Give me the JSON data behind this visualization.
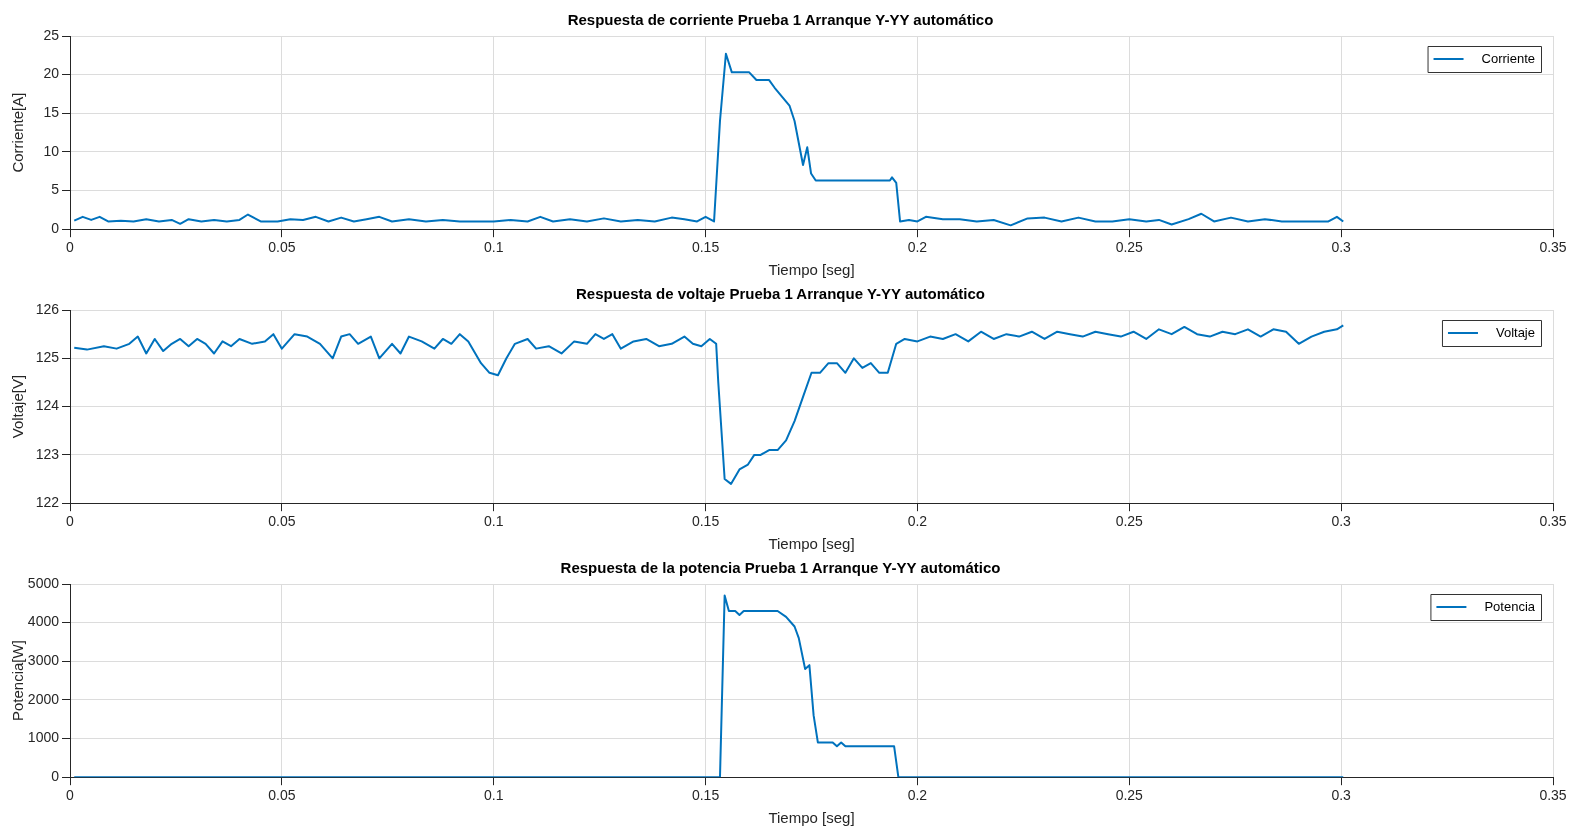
{
  "chart_data": [
    {
      "type": "line",
      "title": "Respuesta de corriente Prueba 1 Arranque Y-YY automático",
      "xlabel": "Tiempo [seg]",
      "ylabel": "Corriente[A]",
      "xlim": [
        0,
        0.35
      ],
      "xticks": [
        0,
        0.05,
        0.1,
        0.15,
        0.2,
        0.25,
        0.3,
        0.35
      ],
      "ylim": [
        0,
        25
      ],
      "yticks": [
        0,
        5,
        10,
        15,
        20,
        25
      ],
      "grid": true,
      "legend": "top right",
      "line_style": "solid",
      "marker": "none",
      "series": [
        {
          "name": "Corriente",
          "color": "#0072bd",
          "x": [
            0.001,
            0.003,
            0.005,
            0.007,
            0.009,
            0.012,
            0.015,
            0.018,
            0.021,
            0.024,
            0.026,
            0.028,
            0.031,
            0.034,
            0.037,
            0.04,
            0.042,
            0.045,
            0.049,
            0.052,
            0.055,
            0.058,
            0.061,
            0.064,
            0.067,
            0.07,
            0.073,
            0.076,
            0.08,
            0.084,
            0.088,
            0.092,
            0.096,
            0.1,
            0.104,
            0.108,
            0.111,
            0.114,
            0.118,
            0.122,
            0.126,
            0.13,
            0.134,
            0.138,
            0.142,
            0.145,
            0.148,
            0.15,
            0.152,
            0.1534,
            0.1548,
            0.1562,
            0.1603,
            0.162,
            0.165,
            0.1663,
            0.1698,
            0.171,
            0.173,
            0.174,
            0.1749,
            0.176,
            0.1935,
            0.194,
            0.195,
            0.1959,
            0.198,
            0.2,
            0.202,
            0.206,
            0.21,
            0.214,
            0.218,
            0.222,
            0.226,
            0.23,
            0.234,
            0.238,
            0.242,
            0.246,
            0.25,
            0.254,
            0.257,
            0.26,
            0.264,
            0.267,
            0.27,
            0.274,
            0.278,
            0.282,
            0.286,
            0.29,
            0.294,
            0.297,
            0.299,
            0.3005
          ],
          "values": [
            1.1,
            1.6,
            1.2,
            1.6,
            1.0,
            1.1,
            1.0,
            1.3,
            1.0,
            1.2,
            0.7,
            1.3,
            1.0,
            1.2,
            1.0,
            1.2,
            1.9,
            1.0,
            1.0,
            1.3,
            1.2,
            1.6,
            1.0,
            1.5,
            1.0,
            1.3,
            1.6,
            1.0,
            1.3,
            1.0,
            1.2,
            1.0,
            1.0,
            1.0,
            1.2,
            1.0,
            1.6,
            1.0,
            1.3,
            1.0,
            1.4,
            1.0,
            1.2,
            1.0,
            1.5,
            1.3,
            1.0,
            1.6,
            1.0,
            14.0,
            22.7,
            20.3,
            20.3,
            19.3,
            19.3,
            18.3,
            16.0,
            14.0,
            8.3,
            10.6,
            7.2,
            6.3,
            6.3,
            6.7,
            6.0,
            1.0,
            1.2,
            1.0,
            1.6,
            1.3,
            1.3,
            1.0,
            1.2,
            0.5,
            1.4,
            1.5,
            1.0,
            1.5,
            1.0,
            1.0,
            1.3,
            1.0,
            1.2,
            0.6,
            1.3,
            2.0,
            1.0,
            1.5,
            1.0,
            1.3,
            1.0,
            1.0,
            1.0,
            1.0,
            1.6,
            1.0
          ]
        }
      ]
    },
    {
      "type": "line",
      "title": "Respuesta de voltaje Prueba 1 Arranque Y-YY automático",
      "xlabel": "Tiempo [seg]",
      "ylabel": "Voltaje[V]",
      "xlim": [
        0,
        0.35
      ],
      "xticks": [
        0,
        0.05,
        0.1,
        0.15,
        0.2,
        0.25,
        0.3,
        0.35
      ],
      "ylim": [
        122,
        126
      ],
      "yticks": [
        122,
        123,
        124,
        125,
        126
      ],
      "grid": true,
      "legend": "top right",
      "line_style": "solid",
      "marker": "none",
      "series": [
        {
          "name": "Voltaje",
          "color": "#0072bd",
          "x": [
            0.001,
            0.004,
            0.008,
            0.011,
            0.014,
            0.016,
            0.018,
            0.02,
            0.022,
            0.024,
            0.026,
            0.028,
            0.03,
            0.032,
            0.034,
            0.036,
            0.038,
            0.04,
            0.043,
            0.046,
            0.048,
            0.05,
            0.053,
            0.056,
            0.059,
            0.062,
            0.064,
            0.066,
            0.068,
            0.071,
            0.073,
            0.076,
            0.078,
            0.08,
            0.083,
            0.086,
            0.088,
            0.09,
            0.092,
            0.094,
            0.097,
            0.099,
            0.101,
            0.103,
            0.105,
            0.108,
            0.11,
            0.113,
            0.116,
            0.119,
            0.122,
            0.124,
            0.126,
            0.128,
            0.13,
            0.133,
            0.136,
            0.139,
            0.142,
            0.145,
            0.147,
            0.149,
            0.151,
            0.1525,
            0.153,
            0.1545,
            0.156,
            0.158,
            0.16,
            0.1615,
            0.163,
            0.165,
            0.167,
            0.169,
            0.171,
            0.173,
            0.175,
            0.177,
            0.179,
            0.181,
            0.183,
            0.185,
            0.187,
            0.189,
            0.191,
            0.193,
            0.195,
            0.197,
            0.2,
            0.203,
            0.206,
            0.209,
            0.212,
            0.215,
            0.218,
            0.221,
            0.224,
            0.227,
            0.23,
            0.233,
            0.236,
            0.239,
            0.242,
            0.245,
            0.248,
            0.251,
            0.254,
            0.257,
            0.26,
            0.263,
            0.266,
            0.269,
            0.272,
            0.275,
            0.278,
            0.281,
            0.284,
            0.287,
            0.29,
            0.293,
            0.296,
            0.299,
            0.3005
          ],
          "values": [
            125.22,
            125.18,
            125.25,
            125.2,
            125.3,
            125.45,
            125.1,
            125.4,
            125.15,
            125.3,
            125.4,
            125.25,
            125.4,
            125.3,
            125.1,
            125.35,
            125.25,
            125.4,
            125.3,
            125.35,
            125.5,
            125.2,
            125.5,
            125.45,
            125.3,
            125.0,
            125.45,
            125.5,
            125.3,
            125.45,
            125.0,
            125.3,
            125.1,
            125.45,
            125.35,
            125.2,
            125.4,
            125.3,
            125.5,
            125.35,
            124.9,
            124.7,
            124.65,
            125.0,
            125.3,
            125.4,
            125.2,
            125.25,
            125.1,
            125.35,
            125.3,
            125.5,
            125.4,
            125.5,
            125.2,
            125.35,
            125.4,
            125.25,
            125.3,
            125.45,
            125.3,
            125.25,
            125.4,
            125.3,
            124.5,
            122.5,
            122.4,
            122.7,
            122.8,
            123.0,
            123.0,
            123.1,
            123.1,
            123.3,
            123.7,
            124.2,
            124.7,
            124.7,
            124.9,
            124.9,
            124.7,
            125.0,
            124.8,
            124.9,
            124.7,
            124.7,
            125.3,
            125.4,
            125.35,
            125.45,
            125.4,
            125.5,
            125.35,
            125.55,
            125.4,
            125.5,
            125.45,
            125.55,
            125.4,
            125.55,
            125.5,
            125.45,
            125.55,
            125.5,
            125.45,
            125.55,
            125.4,
            125.6,
            125.5,
            125.65,
            125.5,
            125.45,
            125.55,
            125.5,
            125.6,
            125.45,
            125.6,
            125.55,
            125.3,
            125.45,
            125.55,
            125.6,
            125.68
          ]
        }
      ]
    },
    {
      "type": "line",
      "title": "Respuesta de la potencia Prueba 1 Arranque Y-YY automático",
      "xlabel": "Tiempo [seg]",
      "ylabel": "Potencia[W]",
      "xlim": [
        0,
        0.35
      ],
      "xticks": [
        0,
        0.05,
        0.1,
        0.15,
        0.2,
        0.25,
        0.3,
        0.35
      ],
      "ylim": [
        0,
        5000
      ],
      "yticks": [
        0,
        1000,
        2000,
        3000,
        4000,
        5000
      ],
      "grid": true,
      "legend": "top right",
      "line_style": "solid",
      "marker": "none",
      "series": [
        {
          "name": "Potencia",
          "color": "#0072bd",
          "x": [
            0.001,
            0.1534,
            0.1545,
            0.1555,
            0.157,
            0.158,
            0.159,
            0.167,
            0.169,
            0.171,
            0.172,
            0.1735,
            0.1745,
            0.1755,
            0.1765,
            0.18,
            0.181,
            0.182,
            0.183,
            0.1945,
            0.1955,
            0.3005
          ],
          "values": [
            0,
            0,
            4700,
            4300,
            4300,
            4200,
            4300,
            4300,
            4150,
            3900,
            3600,
            2800,
            2900,
            1600,
            900,
            900,
            800,
            900,
            800,
            800,
            0,
            0
          ]
        }
      ]
    }
  ]
}
